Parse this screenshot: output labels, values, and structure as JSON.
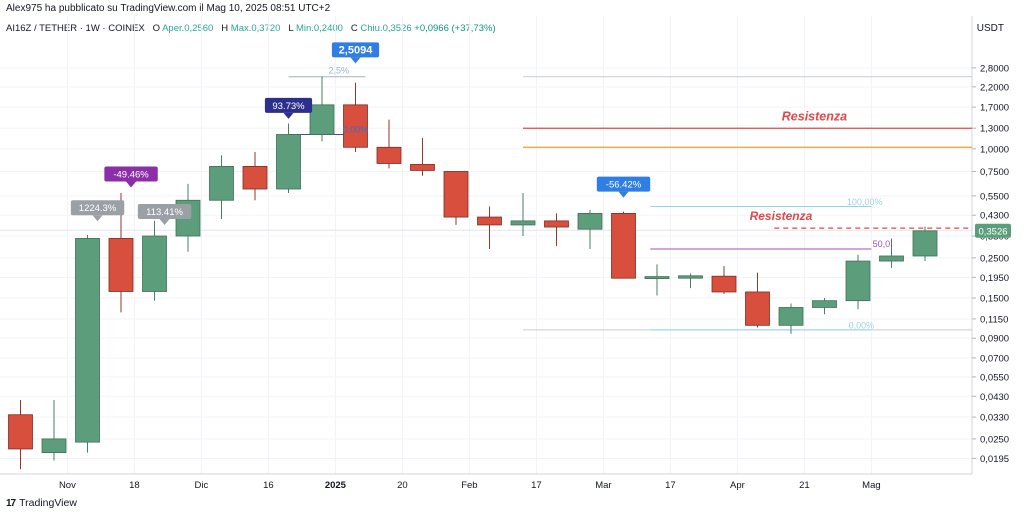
{
  "header": {
    "publisher": "Alex975 ha pubblicato su TradingView.com il Mag 10, 2025 08:51 UTC+2"
  },
  "symbol_info": {
    "symbol": "AI16Z / TETHER · 1W · COINEX",
    "open_label": "O",
    "open_text": "Aper.0,2560",
    "high_label": "H",
    "high_text": "Max.0,3720",
    "low_label": "L",
    "low_text": "Min.0,2400",
    "close_label": "C",
    "close_text": "Chiu.0,3526",
    "change_text": "+0,0966 (+37,73%)"
  },
  "currency": "USDT",
  "brand": {
    "logo": "17",
    "name": "TradingView"
  },
  "colors": {
    "up": "#5c9e7c",
    "down": "#d94f3d",
    "background": "#ffffff",
    "resistance_red": "#e0484a",
    "resistance_orange": "#f0a020"
  },
  "chart_data": {
    "type": "candlestick",
    "scale": "log",
    "ylim": [
      0.016,
      4.2
    ],
    "y_ticks": [
      {
        "v": 2.8,
        "label": "2,8000"
      },
      {
        "v": 2.2,
        "label": "2,2000"
      },
      {
        "v": 1.7,
        "label": "1,7000"
      },
      {
        "v": 1.3,
        "label": "1,3000"
      },
      {
        "v": 1.0,
        "label": "1,0000"
      },
      {
        "v": 0.75,
        "label": "0,7500"
      },
      {
        "v": 0.55,
        "label": "0,5500"
      },
      {
        "v": 0.43,
        "label": "0,4300"
      },
      {
        "v": 0.33,
        "label": "0,3300"
      },
      {
        "v": 0.25,
        "label": "0,2500"
      },
      {
        "v": 0.195,
        "label": "0,1950"
      },
      {
        "v": 0.15,
        "label": "0,1500"
      },
      {
        "v": 0.115,
        "label": "0,1150"
      },
      {
        "v": 0.09,
        "label": "0,0900"
      },
      {
        "v": 0.07,
        "label": "0,0700"
      },
      {
        "v": 0.055,
        "label": "0,0550"
      },
      {
        "v": 0.043,
        "label": "0,0430"
      },
      {
        "v": 0.033,
        "label": "0,0330"
      },
      {
        "v": 0.025,
        "label": "0,0250"
      },
      {
        "v": 0.0195,
        "label": "0,0195"
      }
    ],
    "x_labels": [
      {
        "i": 1.4,
        "label": "Nov"
      },
      {
        "i": 3.4,
        "label": "18"
      },
      {
        "i": 5.4,
        "label": "Dic"
      },
      {
        "i": 7.4,
        "label": "16"
      },
      {
        "i": 9.4,
        "label": "2025",
        "bold": true
      },
      {
        "i": 11.4,
        "label": "20"
      },
      {
        "i": 13.4,
        "label": "Feb"
      },
      {
        "i": 15.4,
        "label": "17"
      },
      {
        "i": 17.4,
        "label": "Mar"
      },
      {
        "i": 19.4,
        "label": "17"
      },
      {
        "i": 21.4,
        "label": "Apr"
      },
      {
        "i": 23.4,
        "label": "21"
      },
      {
        "i": 25.4,
        "label": "Mag"
      }
    ],
    "candles": [
      {
        "o": 0.034,
        "h": 0.041,
        "l": 0.017,
        "c": 0.022
      },
      {
        "o": 0.021,
        "h": 0.041,
        "l": 0.019,
        "c": 0.025
      },
      {
        "o": 0.024,
        "h": 0.335,
        "l": 0.021,
        "c": 0.32
      },
      {
        "o": 0.32,
        "h": 0.57,
        "l": 0.125,
        "c": 0.163
      },
      {
        "o": 0.163,
        "h": 0.4,
        "l": 0.145,
        "c": 0.33
      },
      {
        "o": 0.33,
        "h": 0.64,
        "l": 0.27,
        "c": 0.52
      },
      {
        "o": 0.52,
        "h": 0.92,
        "l": 0.41,
        "c": 0.8
      },
      {
        "o": 0.8,
        "h": 0.96,
        "l": 0.52,
        "c": 0.6
      },
      {
        "o": 0.6,
        "h": 1.38,
        "l": 0.57,
        "c": 1.2
      },
      {
        "o": 1.2,
        "h": 2.51,
        "l": 1.1,
        "c": 1.75
      },
      {
        "o": 1.75,
        "h": 2.32,
        "l": 0.96,
        "c": 1.02
      },
      {
        "o": 1.02,
        "h": 1.45,
        "l": 0.78,
        "c": 0.83
      },
      {
        "o": 0.82,
        "h": 1.15,
        "l": 0.71,
        "c": 0.76
      },
      {
        "o": 0.75,
        "h": 0.75,
        "l": 0.38,
        "c": 0.42
      },
      {
        "o": 0.42,
        "h": 0.48,
        "l": 0.28,
        "c": 0.38
      },
      {
        "o": 0.38,
        "h": 0.57,
        "l": 0.33,
        "c": 0.4
      },
      {
        "o": 0.4,
        "h": 0.44,
        "l": 0.29,
        "c": 0.37
      },
      {
        "o": 0.36,
        "h": 0.46,
        "l": 0.28,
        "c": 0.44
      },
      {
        "o": 0.44,
        "h": 0.45,
        "l": 0.2,
        "c": 0.193
      },
      {
        "o": 0.192,
        "h": 0.23,
        "l": 0.155,
        "c": 0.197
      },
      {
        "o": 0.193,
        "h": 0.205,
        "l": 0.17,
        "c": 0.199
      },
      {
        "o": 0.198,
        "h": 0.225,
        "l": 0.158,
        "c": 0.162
      },
      {
        "o": 0.162,
        "h": 0.207,
        "l": 0.103,
        "c": 0.106
      },
      {
        "o": 0.106,
        "h": 0.14,
        "l": 0.095,
        "c": 0.133
      },
      {
        "o": 0.133,
        "h": 0.15,
        "l": 0.122,
        "c": 0.145
      },
      {
        "o": 0.145,
        "h": 0.26,
        "l": 0.13,
        "c": 0.24
      },
      {
        "o": 0.24,
        "h": 0.32,
        "l": 0.22,
        "c": 0.256
      },
      {
        "o": 0.256,
        "h": 0.372,
        "l": 0.24,
        "c": 0.3526
      }
    ],
    "horizontal_lines": [
      {
        "y": 1.3,
        "from": 15.0,
        "color": "#e0484a",
        "width": 1.3,
        "dash": ""
      },
      {
        "y": 1.02,
        "from": 15.0,
        "color": "#f0a020",
        "width": 1.3,
        "dash": ""
      },
      {
        "y": 2.5,
        "from": 15.0,
        "color": "#c8cdd3",
        "width": 1,
        "dash": ""
      },
      {
        "y": 0.1,
        "from": 15.0,
        "color": "#c8cdd3",
        "width": 1,
        "dash": ""
      },
      {
        "y": 0.48,
        "from": 18.8,
        "to": 25.4,
        "color": "#8fd6ea",
        "width": 1,
        "dash": ""
      },
      {
        "y": 0.28,
        "from": 18.8,
        "to": 25.4,
        "color": "#a24fb6",
        "width": 1,
        "dash": ""
      },
      {
        "y": 0.1,
        "from": 18.8,
        "to": 25.4,
        "color": "#8fd6ea",
        "width": 1,
        "dash": ""
      },
      {
        "y": 0.365,
        "from": 22.5,
        "color": "#e0484a",
        "width": 1.3,
        "dash": "5,4"
      },
      {
        "y": 0.355,
        "from": 0,
        "color": "#e3e6ea",
        "width": 1,
        "dash": ""
      },
      {
        "y": 2.5,
        "from": 8.0,
        "to": 10.3,
        "color": "#9fb3c8",
        "width": 1,
        "dash": ""
      },
      {
        "y": 1.2,
        "from": 8.0,
        "to": 10.2,
        "color": "#3b4bb0",
        "width": 1,
        "dash": ""
      }
    ],
    "resistance_labels": [
      {
        "text": "Resistenza",
        "i": 23.7,
        "y": 1.43,
        "size": 12.5
      },
      {
        "text": "Resistenza",
        "i": 22.7,
        "y": 0.405,
        "size": 12
      }
    ],
    "fib_labels": [
      {
        "text": "100,00%",
        "i": 25.2,
        "y": 0.49,
        "color": "#9ad3e6"
      },
      {
        "text": "50,0",
        "i": 25.7,
        "y": 0.287,
        "color": "#a24fb6"
      },
      {
        "text": "0,00%",
        "i": 25.1,
        "y": 0.102,
        "color": "#9ad3e6"
      },
      {
        "text": "0,00%",
        "i": 10.0,
        "y": 1.23,
        "color": "#3b6cc8"
      },
      {
        "text": "2,5%",
        "i": 9.5,
        "y": 2.6,
        "color": "#9fb3c8"
      }
    ],
    "annotations": [
      {
        "text": "1224.3%",
        "i": 2.3,
        "y": 0.43,
        "bg": "#9aa0a6"
      },
      {
        "text": "-49.46%",
        "i": 3.3,
        "y": 0.66,
        "bg": "#8b2fa8"
      },
      {
        "text": "113.41%",
        "i": 4.3,
        "y": 0.41,
        "bg": "#9aa0a6"
      },
      {
        "text": "93.73%",
        "i": 8.0,
        "y": 1.58,
        "bg": "#2d2f8c"
      },
      {
        "text": "2,5094",
        "i": 10.0,
        "y": 3.2,
        "bg": "#2f7ee6",
        "bold": true
      },
      {
        "text": "-56.42%",
        "i": 18.0,
        "y": 0.58,
        "bg": "#2f7ee6"
      }
    ],
    "price_tag": {
      "value": 0.3526,
      "label": "0,3526",
      "bg": "#5c9e7c"
    }
  }
}
